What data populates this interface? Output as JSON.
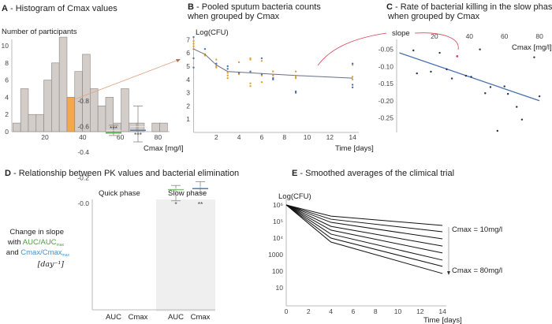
{
  "chart_data": [
    {
      "panel": "A",
      "type": "bar",
      "title_letter": "A",
      "title": " - Histogram of Cmax values",
      "ylabel": "Number of participants",
      "xlabel": "Cmax [mg/l]",
      "bin_start": 3,
      "bin_width": 4.1,
      "counts": [
        1,
        5,
        2,
        2,
        6,
        8,
        11,
        4,
        7,
        9,
        5,
        3,
        4,
        1,
        5,
        1,
        1,
        0,
        1,
        1
      ],
      "highlight_index": 7,
      "xticks": [
        20,
        40,
        60,
        80
      ],
      "yticks": [
        0,
        2,
        4,
        6,
        8,
        10
      ],
      "xlim": [
        0,
        85
      ],
      "ylim": [
        0,
        11
      ],
      "colors": {
        "bar": "#d3cdc9",
        "highlight": "#f5a84a",
        "arrow": "#e0a080"
      }
    },
    {
      "panel": "B",
      "type": "scatter",
      "title_letter": "B",
      "title_line1": " - Pooled sputum bacteria counts",
      "title_line2": "when grouped by Cmax",
      "ylabel": "Log(CFU)",
      "xlabel": "Time [days]",
      "xticks": [
        2,
        4,
        6,
        8,
        10,
        12,
        14
      ],
      "yticks": [
        1,
        2,
        3,
        4,
        5,
        6,
        7
      ],
      "xlim": [
        0,
        14.5
      ],
      "ylim": [
        0,
        7.3
      ],
      "fit_line": [
        [
          0,
          6.3
        ],
        [
          1,
          5.9
        ],
        [
          2,
          5.1
        ],
        [
          3,
          4.6
        ],
        [
          5,
          4.5
        ],
        [
          7,
          4.4
        ],
        [
          9,
          4.3
        ],
        [
          14,
          4.1
        ]
      ],
      "points_orange": [
        [
          0,
          6.7
        ],
        [
          0,
          6.5
        ],
        [
          0,
          6.9
        ],
        [
          0,
          6.3
        ],
        [
          1,
          5.9
        ],
        [
          1,
          5.8
        ],
        [
          2,
          5.5
        ],
        [
          2,
          5.0
        ],
        [
          2,
          4.9
        ],
        [
          3,
          4.5
        ],
        [
          3,
          4.3
        ],
        [
          3,
          4.1
        ],
        [
          4,
          5.3
        ],
        [
          4,
          4.4
        ],
        [
          5,
          5.6
        ],
        [
          5,
          5.5
        ],
        [
          5,
          3.7
        ],
        [
          5,
          3.5
        ],
        [
          6,
          5.4
        ],
        [
          6,
          4.3
        ],
        [
          6,
          3.8
        ],
        [
          7,
          4.6
        ],
        [
          7,
          4.3
        ],
        [
          9,
          4.6
        ],
        [
          9,
          4.2
        ],
        [
          9,
          4.1
        ],
        [
          14,
          5.1
        ],
        [
          14,
          4.2
        ],
        [
          14,
          4.0
        ]
      ],
      "points_blue": [
        [
          0,
          5.6
        ],
        [
          0,
          4.9
        ],
        [
          0,
          7.2
        ],
        [
          1,
          6.3
        ],
        [
          2,
          5.2
        ],
        [
          3,
          4.8
        ],
        [
          3,
          5.0
        ],
        [
          4,
          4.5
        ],
        [
          5,
          4.6
        ],
        [
          6,
          4.4
        ],
        [
          6,
          5.6
        ],
        [
          7,
          4.1
        ],
        [
          7,
          4.0
        ],
        [
          9,
          3.1
        ],
        [
          9,
          3.0
        ],
        [
          14,
          3.6
        ],
        [
          14,
          3.4
        ],
        [
          14,
          5.2
        ]
      ],
      "colors": {
        "line": "#6a6f82",
        "orange": "#e3a12f",
        "blue": "#4a72b0",
        "connector": "#d9445a"
      }
    },
    {
      "panel": "C",
      "type": "scatter",
      "title_letter": "C",
      "title_line1": " - Rate of bacterial killing in the slow phase",
      "title_line2": "when grouped by Cmax",
      "ylabel": "slope",
      "xlabel": "Cmax [mg/l]",
      "xticks": [
        20,
        40,
        60,
        80
      ],
      "ytick_labels": [
        "-0.05",
        "-0.10",
        "-0.15",
        "-0.20",
        "-0.25"
      ],
      "yticks": [
        -0.05,
        -0.1,
        -0.15,
        -0.2,
        -0.25
      ],
      "xlim": [
        0,
        85
      ],
      "ylim": [
        -0.3,
        0
      ],
      "points": [
        [
          8,
          -0.053
        ],
        [
          10,
          -0.12
        ],
        [
          23,
          -0.06
        ],
        [
          18,
          -0.115
        ],
        [
          27,
          -0.108
        ],
        [
          30,
          -0.135
        ],
        [
          38,
          -0.127
        ],
        [
          41,
          -0.13
        ],
        [
          46,
          -0.05
        ],
        [
          49,
          -0.178
        ],
        [
          52,
          -0.16
        ],
        [
          56,
          -0.288
        ],
        [
          60,
          -0.158
        ],
        [
          62,
          -0.18
        ],
        [
          67,
          -0.218
        ],
        [
          70,
          -0.255
        ],
        [
          77,
          -0.073
        ],
        [
          80,
          -0.187
        ]
      ],
      "highlight_point": [
        33,
        -0.07
      ],
      "regression": [
        [
          0,
          -0.06
        ],
        [
          80,
          -0.2
        ]
      ],
      "colors": {
        "point": "#2b2f55",
        "highlight": "#d9445a",
        "line": "#4a72b0"
      }
    },
    {
      "panel": "D",
      "type": "box",
      "title_letter": "D",
      "title": " - Relationship between PK values and bacterial elimination",
      "ylabel_line1": "Change in slope",
      "ylabel_with": "with ",
      "ylabel_auc": "AUC/AUC",
      "ylabel_auc_sub": "max",
      "ylabel_and": "and ",
      "ylabel_cmax": "Cmax/Cmax",
      "ylabel_cmax_sub": "max",
      "ylabel_unit": "[day⁻¹]",
      "groups": [
        "Quick phase",
        "Slow phase"
      ],
      "yticks": [
        -0.0,
        -0.2,
        -0.4,
        -0.6,
        -0.8
      ],
      "ytick_labels": [
        "-0.0",
        "-0.2",
        "-0.4",
        "-0.6",
        "-0.8"
      ],
      "ylim": [
        -0.84,
        0.03
      ],
      "boxes": [
        {
          "label": "AUC",
          "group": 0,
          "color": "#4f9a45",
          "whisker_high": -0.53,
          "q3": -0.555,
          "median": -0.57,
          "q1": -0.585,
          "whisker_low": -0.61,
          "stars": "***"
        },
        {
          "label": "Cmax",
          "group": 0,
          "color": "#4a7fbf",
          "whisker_high": -0.48,
          "q3": -0.575,
          "median": -0.6,
          "q1": -0.625,
          "whisker_low": -0.76,
          "stars": "***"
        },
        {
          "label": "AUC",
          "group": 1,
          "color": "#7fbf70",
          "whisker_high": -0.02,
          "q3": -0.112,
          "median": -0.115,
          "q1": -0.118,
          "whisker_low": -0.14,
          "stars": "*"
        },
        {
          "label": "Cmax",
          "group": 1,
          "color": "#4a7fbf",
          "whisker_high": -0.085,
          "q3": -0.12,
          "median": -0.13,
          "q1": -0.14,
          "whisker_low": -0.17,
          "stars": "**"
        }
      ]
    },
    {
      "panel": "E",
      "type": "line",
      "title_letter": "E",
      "title": " - Smoothed averages of the climical trial",
      "ylabel": "Log(CFU)",
      "xlabel": "Time [days]",
      "xticks": [
        0,
        2,
        4,
        6,
        8,
        10,
        12,
        14
      ],
      "ytick_labels": [
        "10",
        "100",
        "1000",
        "10⁴",
        "10⁵",
        "10⁶"
      ],
      "yticks": [
        1,
        2,
        3,
        4,
        5,
        6
      ],
      "xlim": [
        0,
        14.5
      ],
      "ylim": [
        0,
        6.2
      ],
      "series": [
        {
          "name": "Cmax = 10mg/l",
          "points": [
            [
              0,
              6
            ],
            [
              4,
              5.33
            ],
            [
              14,
              4.76
            ]
          ]
        },
        {
          "name": "",
          "points": [
            [
              0,
              6
            ],
            [
              4,
              5.14
            ],
            [
              14,
              4.38
            ]
          ]
        },
        {
          "name": "",
          "points": [
            [
              0,
              6
            ],
            [
              4,
              4.95
            ],
            [
              14,
              3.95
            ]
          ]
        },
        {
          "name": "",
          "points": [
            [
              0,
              6
            ],
            [
              4,
              4.71
            ],
            [
              14,
              3.52
            ]
          ]
        },
        {
          "name": "",
          "points": [
            [
              0,
              6
            ],
            [
              4,
              4.48
            ],
            [
              14,
              3.1
            ]
          ]
        },
        {
          "name": "",
          "points": [
            [
              0,
              6
            ],
            [
              4,
              4.24
            ],
            [
              14,
              2.67
            ]
          ]
        },
        {
          "name": "",
          "points": [
            [
              0,
              6
            ],
            [
              4,
              4.0
            ],
            [
              14,
              2.29
            ]
          ]
        },
        {
          "name": "Cmax = 80mg/l",
          "points": [
            [
              0,
              6
            ],
            [
              4,
              3.76
            ],
            [
              14,
              1.86
            ]
          ]
        }
      ],
      "annotation_top": "Cmax = 10mg/l",
      "annotation_bottom": "Cmax = 80mg/l"
    }
  ]
}
